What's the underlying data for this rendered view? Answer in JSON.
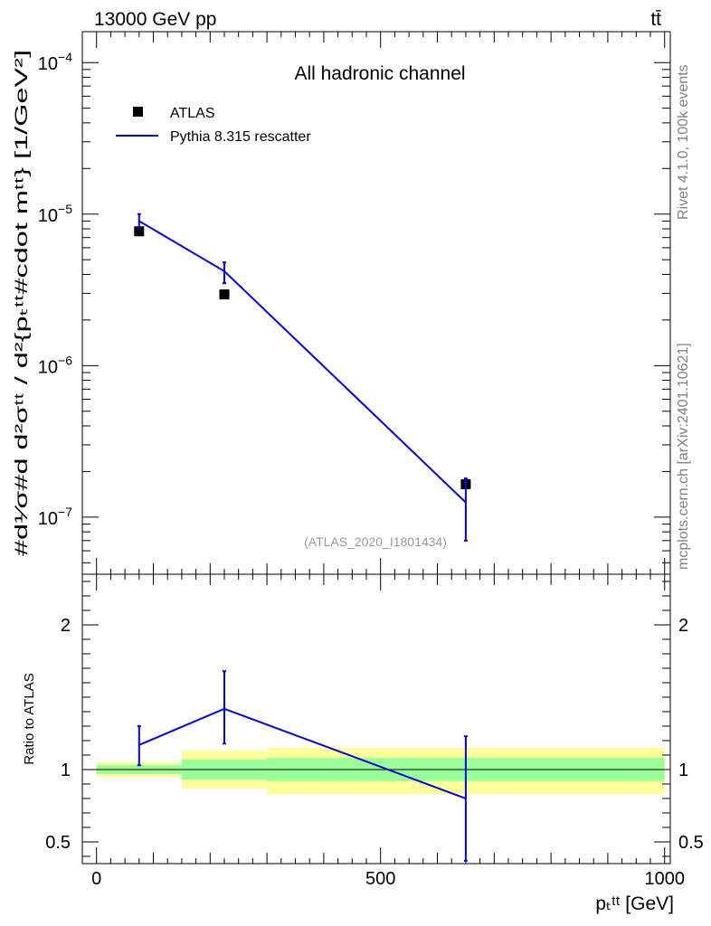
{
  "header": {
    "energy_label": "13000 GeV pp",
    "process_label": "tt̄"
  },
  "side_labels": {
    "rivet": "Rivet 4.1.0,  100k events",
    "source": "mcplots.cern.ch [arXiv:2401.10621]"
  },
  "chart_data": [
    {
      "type": "scatter",
      "panel": "main",
      "title": "All hadronic channel",
      "analysis_tag": "(ATLAS_2020_I1801434)",
      "ylabel": "#d¹⁄σ#d d²σᵗᵗ / d²{pₜᵗᵗ#cdot mᵗᵗ} [1/GeV²]",
      "yscale": "log",
      "ylim": [
        4.2e-08,
        0.00016
      ],
      "xlim": [
        -25,
        1010
      ],
      "ytick_labels": [
        {
          "value": 1e-07,
          "base": "10",
          "exp": "−7"
        },
        {
          "value": 1e-06,
          "base": "10",
          "exp": "−6"
        },
        {
          "value": 1e-05,
          "base": "10",
          "exp": "−5"
        },
        {
          "value": 0.0001,
          "base": "10",
          "exp": "−4"
        }
      ],
      "legend": [
        {
          "label": "ATLAS",
          "marker": "square",
          "color": "#000000"
        },
        {
          "label": "Pythia 8.315 rescatter",
          "marker": "line",
          "color": "#0000e0"
        }
      ],
      "series": [
        {
          "name": "ATLAS",
          "color": "#000000",
          "points": [
            {
              "x": 75,
              "y": 7.7e-06
            },
            {
              "x": 225,
              "y": 2.95e-06
            },
            {
              "x": 650,
              "y": 1.65e-07
            }
          ]
        },
        {
          "name": "Pythia 8.315 rescatter",
          "color": "#0000e0",
          "points": [
            {
              "x": 75,
              "y": 9e-06,
              "ylo": 8.1e-06,
              "yhi": 1e-05
            },
            {
              "x": 225,
              "y": 4.2e-06,
              "ylo": 3.5e-06,
              "yhi": 4.8e-06
            },
            {
              "x": 650,
              "y": 1.25e-07,
              "ylo": 7e-08,
              "yhi": 1.8e-07
            }
          ]
        }
      ]
    },
    {
      "type": "line",
      "panel": "ratio",
      "ylabel": "Ratio to ATLAS",
      "xlabel": "pₜᵗᵗ [GeV]",
      "xlim": [
        -25,
        1010
      ],
      "ylim": [
        0.35,
        2.35
      ],
      "ytick_labels": [
        "0.5",
        "1",
        "2"
      ],
      "ytick_values": [
        0.5,
        1,
        2
      ],
      "xtick_labels": [
        "0",
        "500",
        "1000"
      ],
      "xtick_values": [
        0,
        500,
        1000
      ],
      "reference_line": 1,
      "bands": [
        {
          "x0": 0,
          "x1": 150,
          "inner": [
            0.97,
            1.03
          ],
          "outer": [
            0.95,
            1.05
          ]
        },
        {
          "x0": 150,
          "x1": 300,
          "inner": [
            0.93,
            1.07
          ],
          "outer": [
            0.87,
            1.13
          ]
        },
        {
          "x0": 300,
          "x1": 1000,
          "inner": [
            0.92,
            1.08
          ],
          "outer": [
            0.83,
            1.15
          ]
        }
      ],
      "band_colors": {
        "inner": "#99ff99",
        "outer": "#ffff99"
      },
      "series": [
        {
          "name": "Pythia 8.315 rescatter",
          "color": "#0000e0",
          "points": [
            {
              "x": 75,
              "y": 1.17,
              "ylo": 1.03,
              "yhi": 1.3
            },
            {
              "x": 225,
              "y": 1.42,
              "ylo": 1.18,
              "yhi": 1.68
            },
            {
              "x": 650,
              "y": 0.8,
              "ylo": 0.37,
              "yhi": 1.23
            }
          ]
        }
      ]
    }
  ]
}
